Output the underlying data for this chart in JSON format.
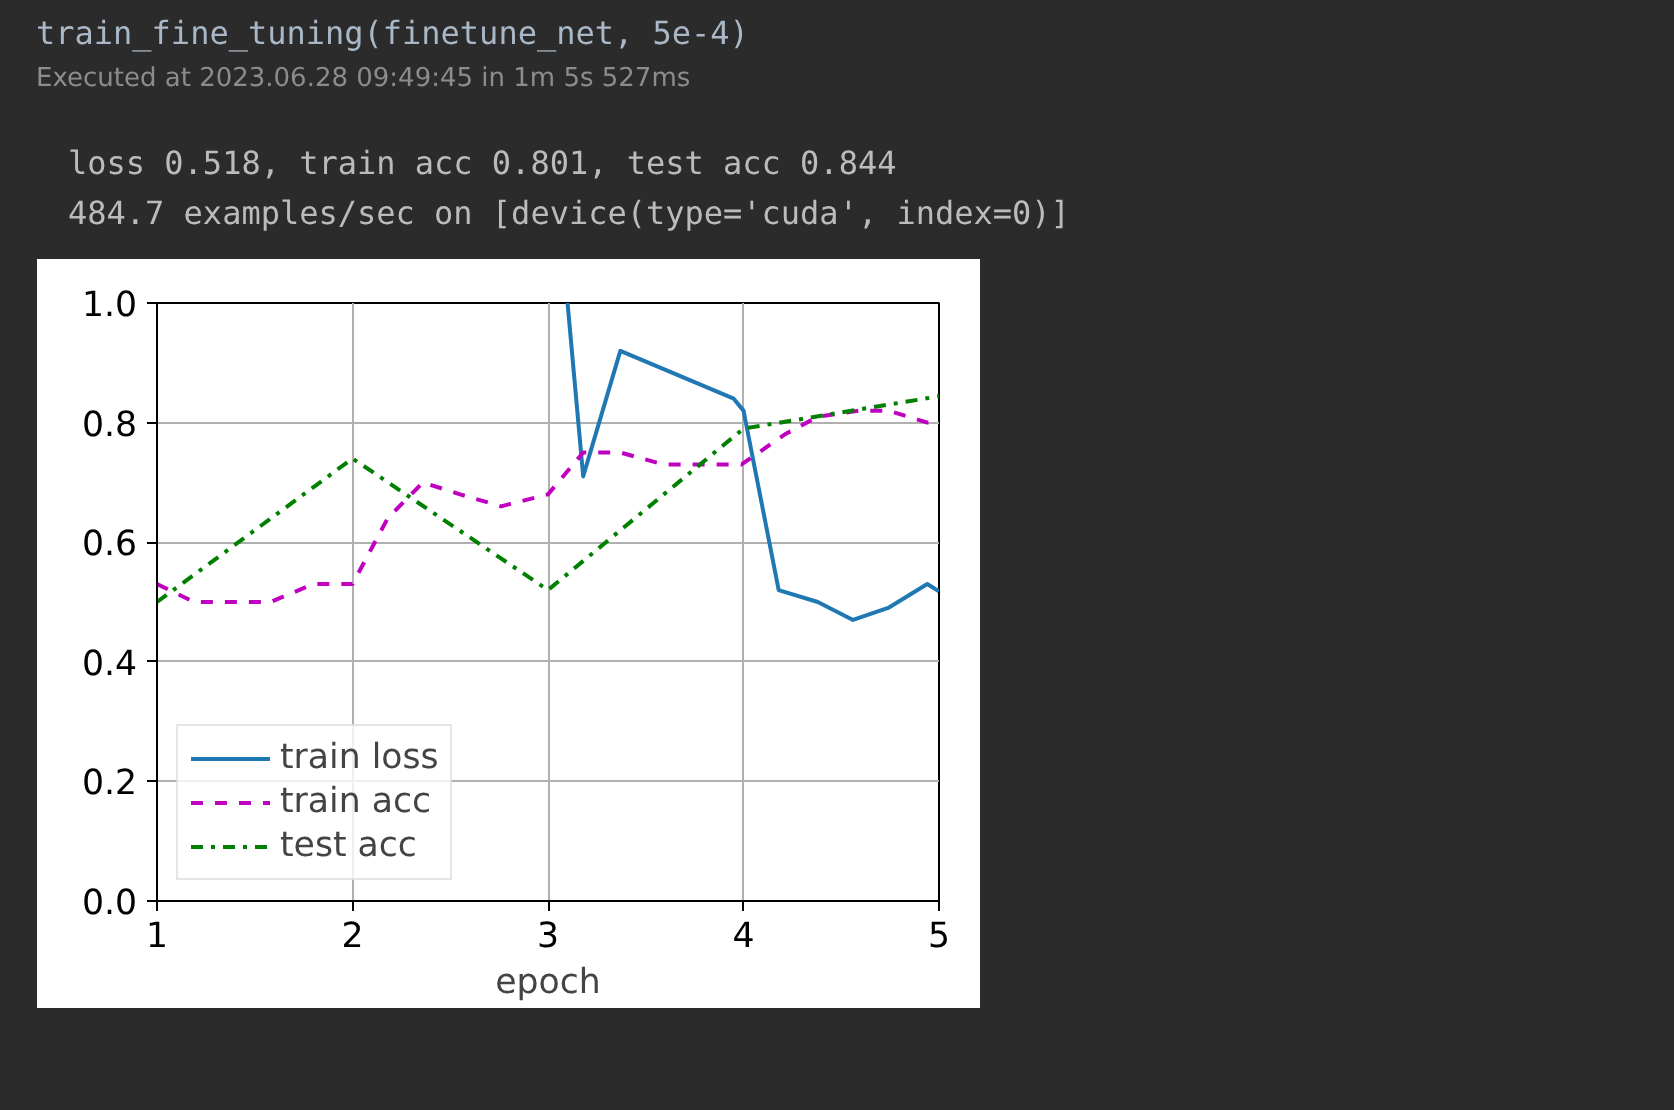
{
  "chart_data": {
    "type": "line",
    "xlabel": "epoch",
    "annotations": [
      "train_fine_tuning(finetune_net, 5e-4)",
      "Executed at 2023.06.28 09:49:45 in 1m 5s 527ms",
      "loss 0.518, train acc 0.801, test acc 0.844",
      "484.7 examples/sec on [device(type='cuda', index=0)]"
    ],
    "xlim": [
      1,
      5
    ],
    "ylim": [
      0,
      1
    ],
    "xticks": [
      1,
      2,
      3,
      4,
      5
    ],
    "yticks": [
      {
        "value": 0,
        "label": "0.0"
      },
      0.2,
      0.4,
      0.6,
      0.8,
      {
        "value": 1,
        "label": "1.0"
      }
    ],
    "grid": true,
    "legend": "bottom left",
    "series": [
      {
        "name": "train loss",
        "color": "#1f77b4",
        "line_style": "solid",
        "x": [
          3.1,
          3.18,
          3.37,
          3.95,
          4.0,
          4.18,
          4.38,
          4.56,
          4.74,
          4.94,
          5.0
        ],
        "values": [
          1.0,
          0.71,
          0.92,
          0.84,
          0.82,
          0.52,
          0.5,
          0.47,
          0.49,
          0.53,
          0.518
        ]
      },
      {
        "name": "train acc",
        "color": "#bf00bf",
        "line_style": "dashed",
        "x": [
          1.0,
          1.19,
          1.38,
          1.58,
          1.8,
          2.0,
          2.18,
          2.36,
          2.55,
          2.76,
          3.0,
          3.18,
          3.37,
          3.59,
          3.82,
          3.99,
          4.21,
          4.38,
          4.59,
          4.74,
          4.94,
          5.0
        ],
        "values": [
          0.53,
          0.5,
          0.5,
          0.5,
          0.53,
          0.53,
          0.64,
          0.7,
          0.68,
          0.66,
          0.68,
          0.75,
          0.75,
          0.73,
          0.73,
          0.73,
          0.78,
          0.81,
          0.82,
          0.82,
          0.8,
          0.801
        ]
      },
      {
        "name": "test acc",
        "color": "#008000",
        "line_style": "dashdot",
        "x": [
          1,
          2,
          3,
          4,
          5
        ],
        "values": [
          0.5,
          0.74,
          0.52,
          0.79,
          0.844
        ]
      }
    ]
  }
}
